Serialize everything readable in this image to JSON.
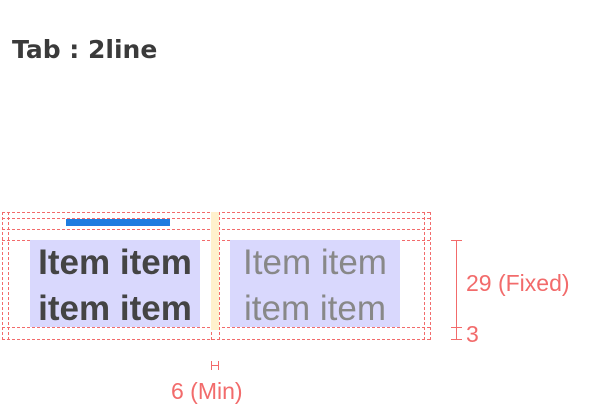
{
  "title": "Tab : 2line",
  "tabs": [
    {
      "line1": "Item item",
      "line2": "item item",
      "state": "selected"
    },
    {
      "line1": "Item item",
      "line2": "item item",
      "state": "unselected"
    }
  ],
  "annotations": {
    "text_height": "29 (Fixed)",
    "bottom_padding": "3",
    "divider_gap": "6 (Min)"
  },
  "colors": {
    "indicator": "#1e7de0",
    "text_area_highlight": "#d9d8fd",
    "divider_highlight": "#fff1cd",
    "guide_lines": "#f26b6b",
    "selected_text": "#444444",
    "unselected_text": "#888888"
  }
}
